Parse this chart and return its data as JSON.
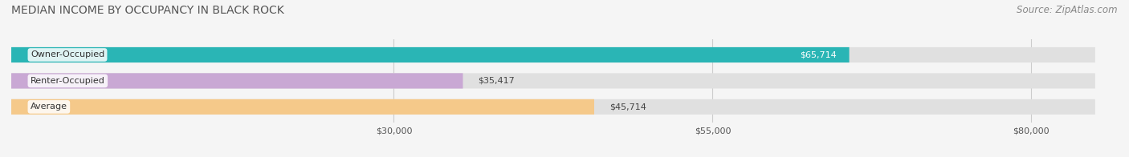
{
  "title": "MEDIAN INCOME BY OCCUPANCY IN BLACK ROCK",
  "source": "Source: ZipAtlas.com",
  "categories": [
    "Owner-Occupied",
    "Renter-Occupied",
    "Average"
  ],
  "values": [
    65714,
    35417,
    45714
  ],
  "labels": [
    "$65,714",
    "$35,417",
    "$45,714"
  ],
  "bar_colors": [
    "#2ab5b5",
    "#c9a8d4",
    "#f5c98a"
  ],
  "x_ticks": [
    30000,
    55000,
    80000
  ],
  "x_tick_labels": [
    "$30,000",
    "$55,000",
    "$80,000"
  ],
  "xlim": [
    0,
    85000
  ],
  "background_color": "#f5f5f5",
  "bar_background_color": "#e0e0e0",
  "title_fontsize": 10,
  "source_fontsize": 8.5,
  "label_fontsize": 8,
  "tick_fontsize": 8
}
